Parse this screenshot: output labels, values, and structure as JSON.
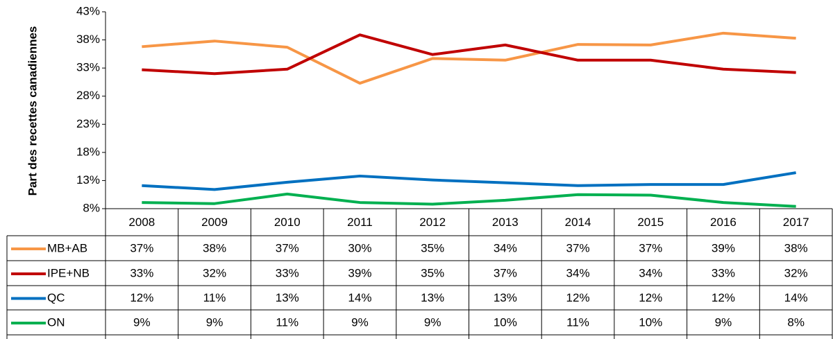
{
  "chart_data": {
    "type": "line",
    "y_label": "Part des recettes canadiennes",
    "categories": [
      "2008",
      "2009",
      "2010",
      "2011",
      "2012",
      "2013",
      "2014",
      "2015",
      "2016",
      "2017"
    ],
    "ylim": [
      8,
      43
    ],
    "yticks": [
      {
        "value": 8,
        "label": "8%"
      },
      {
        "value": 13,
        "label": "13%"
      },
      {
        "value": 18,
        "label": "18%"
      },
      {
        "value": 23,
        "label": "23%"
      },
      {
        "value": 28,
        "label": "28%"
      },
      {
        "value": 33,
        "label": "33%"
      },
      {
        "value": 38,
        "label": "38%"
      },
      {
        "value": 43,
        "label": "43%"
      }
    ],
    "grid": false,
    "series": [
      {
        "name": "MB+AB",
        "color": "#f79646",
        "values": [
          36.8,
          37.8,
          36.7,
          30.3,
          34.7,
          34.4,
          37.2,
          37.1,
          39.2,
          38.3
        ],
        "value_labels": [
          "37%",
          "38%",
          "37%",
          "30%",
          "35%",
          "34%",
          "37%",
          "37%",
          "39%",
          "38%"
        ]
      },
      {
        "name": "IPE+NB",
        "color": "#c00000",
        "values": [
          32.7,
          32.0,
          32.8,
          38.9,
          35.4,
          37.1,
          34.4,
          34.4,
          32.8,
          32.2
        ],
        "value_labels": [
          "33%",
          "32%",
          "33%",
          "39%",
          "35%",
          "37%",
          "34%",
          "34%",
          "33%",
          "32%"
        ]
      },
      {
        "name": "QC",
        "color": "#0070c0",
        "values": [
          12.1,
          11.4,
          12.7,
          13.8,
          13.1,
          12.6,
          12.1,
          12.3,
          12.3,
          14.4
        ],
        "value_labels": [
          "12%",
          "11%",
          "13%",
          "14%",
          "13%",
          "13%",
          "12%",
          "12%",
          "12%",
          "14%"
        ]
      },
      {
        "name": "ON",
        "color": "#00b050",
        "values": [
          9.1,
          8.9,
          10.6,
          9.1,
          8.8,
          9.5,
          10.5,
          10.4,
          9.1,
          8.4
        ],
        "value_labels": [
          "9%",
          "9%",
          "11%",
          "9%",
          "9%",
          "10%",
          "11%",
          "10%",
          "9%",
          "8%"
        ]
      }
    ]
  }
}
